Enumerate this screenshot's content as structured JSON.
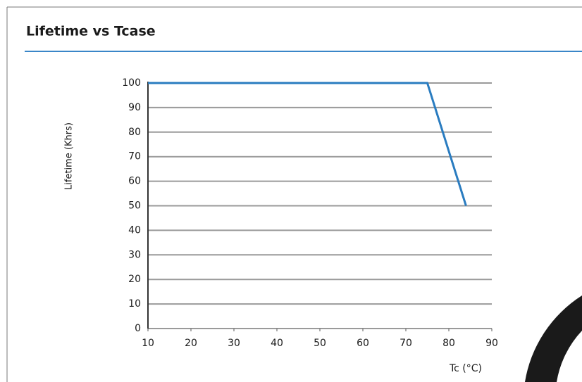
{
  "chart_data": {
    "type": "line",
    "title": "Lifetime vs Tcase",
    "x_label": "Tc (°C)",
    "y_label": "Lifetime (Khrs)",
    "x": [
      10,
      75,
      84
    ],
    "series": [
      {
        "color": "#2a7cc0",
        "values": [
          100,
          100,
          50
        ]
      }
    ],
    "xlim": [
      10,
      90
    ],
    "xticks": [
      10,
      20,
      30,
      40,
      50,
      60,
      70,
      80,
      90
    ],
    "ylim": [
      0,
      100
    ],
    "yticks": [
      0,
      10,
      20,
      30,
      40,
      50,
      60,
      70,
      80,
      90,
      100
    ],
    "grid": true
  }
}
